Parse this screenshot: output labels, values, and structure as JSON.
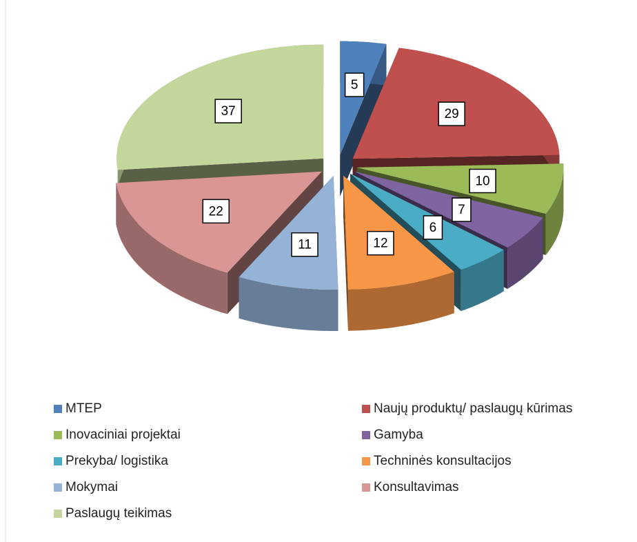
{
  "chart_data": {
    "type": "pie",
    "categories": [
      "MTEP",
      "Naujų produktų/ paslaugų kūrimas",
      "Inovaciniai projektai",
      "Gamyba",
      "Prekyba/ logistika",
      "Techninės konsultacijos",
      "Mokymai",
      "Konsultavimas",
      "Paslaugų teikimas"
    ],
    "values": [
      5,
      29,
      10,
      7,
      6,
      12,
      11,
      22,
      37
    ],
    "colors": [
      "#4f81bd",
      "#c0504d",
      "#9bbb59",
      "#8064a2",
      "#4bacc6",
      "#f79646",
      "#95b3d7",
      "#d99694",
      "#c3d69b"
    ],
    "legend": "bottom"
  }
}
